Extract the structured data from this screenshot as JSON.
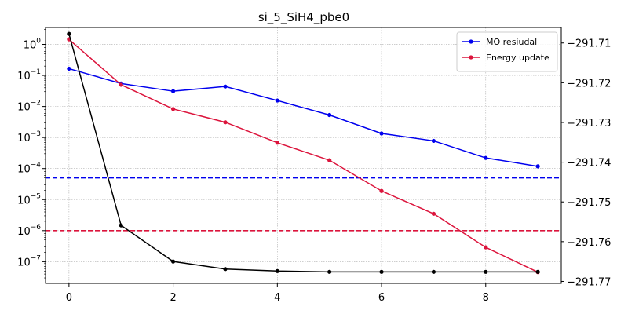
{
  "chart_data": {
    "type": "line",
    "title": "si_5_SiH4_pbe0",
    "xlabel": "",
    "ylabel_left": "",
    "ylabel_right": "",
    "x": [
      0,
      1,
      2,
      3,
      4,
      5,
      6,
      7,
      8,
      9
    ],
    "xlim": [
      -0.45,
      9.45
    ],
    "x_ticks": [
      0,
      2,
      4,
      6,
      8
    ],
    "left_axis": {
      "scale": "log",
      "ylim": [
        2e-08,
        3.5
      ],
      "tick_exponents": [
        0,
        -1,
        -2,
        -3,
        -4,
        -5,
        -6,
        -7
      ]
    },
    "right_axis": {
      "scale": "linear",
      "ylim": [
        -291.7705,
        -291.7061
      ],
      "ticks": [
        -291.71,
        -291.72,
        -291.73,
        -291.74,
        -291.75,
        -291.76,
        -291.77
      ],
      "tick_labels": [
        "−291.71",
        "−291.72",
        "−291.73",
        "−291.74",
        "−291.75",
        "−291.76",
        "−291.77"
      ]
    },
    "series": [
      {
        "name": "MO resiudal",
        "axis": "left",
        "color": "#0000ee",
        "values": [
          0.165,
          0.055,
          0.031,
          0.044,
          0.0155,
          0.0053,
          0.00135,
          0.00078,
          0.00022,
          0.000118
        ]
      },
      {
        "name": "Energy update",
        "axis": "left",
        "color": "#dc143c",
        "values": [
          1.45,
          0.05,
          0.0083,
          0.0031,
          0.00068,
          0.000185,
          1.9e-05,
          3.5e-06,
          2.9e-07,
          4.6e-08
        ]
      },
      {
        "axis": "right",
        "color": "#000000",
        "values": [
          -291.7077,
          -291.7559,
          -291.765,
          -291.7669,
          -291.7674,
          -291.7676,
          -291.7676,
          -291.7676,
          -291.7676,
          -291.7676
        ]
      }
    ],
    "reference_lines": [
      {
        "axis": "left",
        "value": 5e-05,
        "color": "#0000ee",
        "style": "dashed"
      },
      {
        "axis": "left",
        "value": 1e-06,
        "color": "#dc143c",
        "style": "dashed"
      }
    ],
    "grid": true,
    "legend_position": "top-right"
  }
}
